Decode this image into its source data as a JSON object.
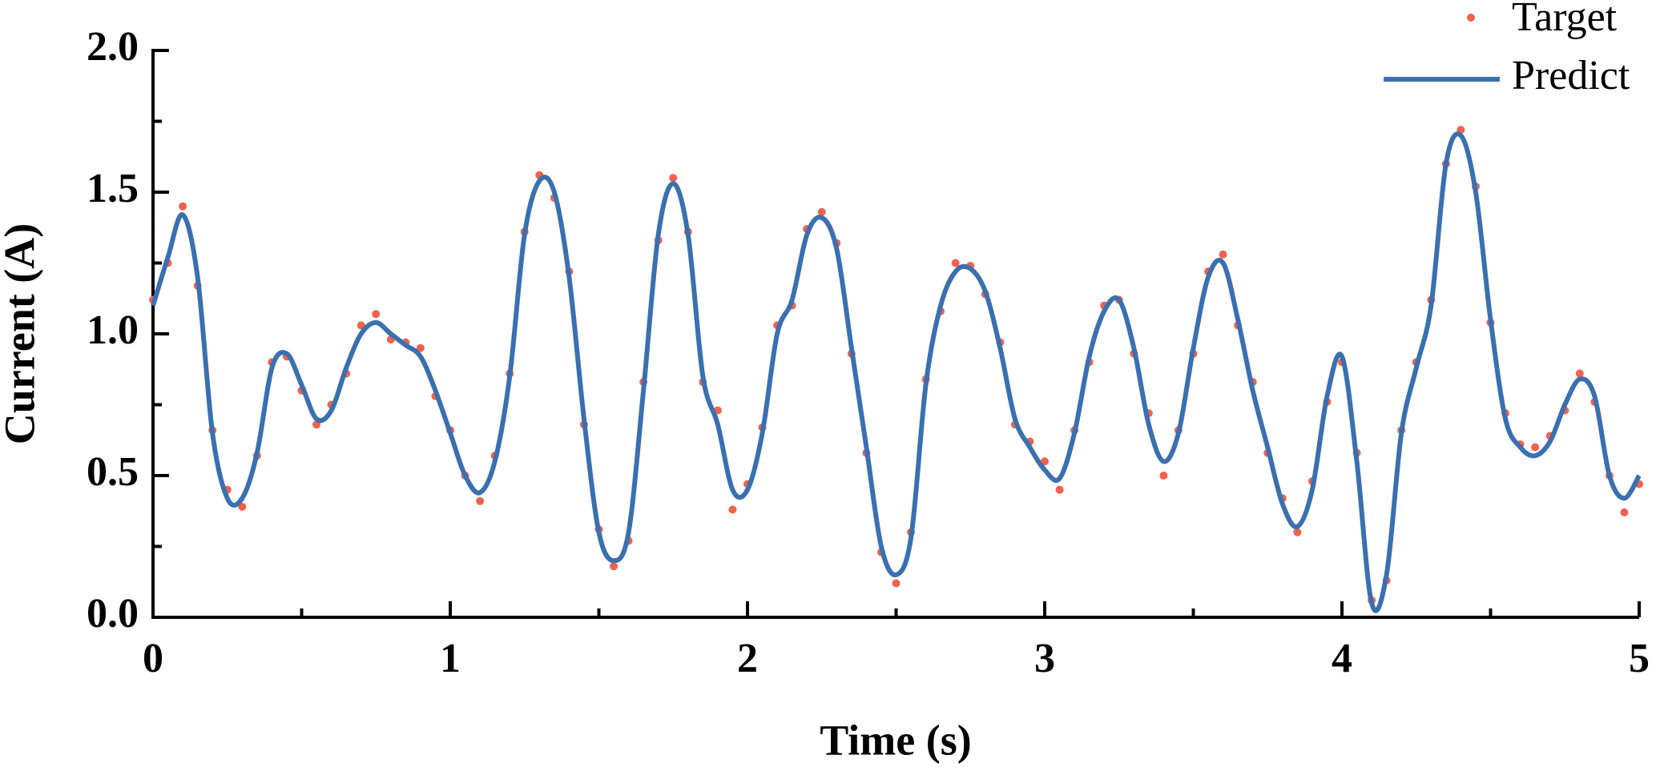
{
  "chart_data": {
    "type": "line",
    "xlabel": "Time (s)",
    "ylabel": "Current (A)",
    "x": [
      0,
      0.05,
      0.1,
      0.15,
      0.2,
      0.25,
      0.3,
      0.35,
      0.4,
      0.45,
      0.5,
      0.55,
      0.6,
      0.65,
      0.7,
      0.75,
      0.8,
      0.85,
      0.9,
      0.95,
      1,
      1.05,
      1.1,
      1.15,
      1.2,
      1.25,
      1.3,
      1.35,
      1.4,
      1.45,
      1.5,
      1.55,
      1.6,
      1.65,
      1.7,
      1.75,
      1.8,
      1.85,
      1.9,
      1.95,
      2,
      2.05,
      2.1,
      2.15,
      2.2,
      2.25,
      2.3,
      2.35,
      2.4,
      2.45,
      2.5,
      2.55,
      2.6,
      2.65,
      2.7,
      2.75,
      2.8,
      2.85,
      2.9,
      2.95,
      3,
      3.05,
      3.1,
      3.15,
      3.2,
      3.25,
      3.3,
      3.35,
      3.4,
      3.45,
      3.5,
      3.55,
      3.6,
      3.65,
      3.7,
      3.75,
      3.8,
      3.85,
      3.9,
      3.95,
      4,
      4.05,
      4.1,
      4.15,
      4.2,
      4.25,
      4.3,
      4.35,
      4.4,
      4.45,
      4.5,
      4.55,
      4.6,
      4.65,
      4.7,
      4.75,
      4.8,
      4.85,
      4.9,
      4.95,
      5
    ],
    "series": [
      {
        "name": "Target",
        "type": "scatter",
        "color": "#f0624d",
        "values": [
          1.12,
          1.25,
          1.45,
          1.17,
          0.66,
          0.45,
          0.39,
          0.57,
          0.9,
          0.92,
          0.8,
          0.68,
          0.75,
          0.86,
          1.03,
          1.07,
          0.98,
          0.97,
          0.95,
          0.78,
          0.66,
          0.5,
          0.41,
          0.57,
          0.86,
          1.36,
          1.56,
          1.48,
          1.22,
          0.68,
          0.31,
          0.18,
          0.27,
          0.83,
          1.33,
          1.55,
          1.36,
          0.83,
          0.73,
          0.38,
          0.47,
          0.67,
          1.03,
          1.1,
          1.37,
          1.43,
          1.32,
          0.93,
          0.58,
          0.23,
          0.12,
          0.3,
          0.84,
          1.08,
          1.25,
          1.24,
          1.14,
          0.97,
          0.68,
          0.62,
          0.55,
          0.45,
          0.66,
          0.9,
          1.1,
          1.12,
          0.93,
          0.72,
          0.5,
          0.66,
          0.93,
          1.22,
          1.28,
          1.03,
          0.83,
          0.58,
          0.42,
          0.3,
          0.48,
          0.76,
          0.9,
          0.58,
          0.06,
          0.13,
          0.66,
          0.9,
          1.12,
          1.6,
          1.72,
          1.52,
          1.04,
          0.72,
          0.61,
          0.6,
          0.64,
          0.73,
          0.86,
          0.76,
          0.5,
          0.37,
          0.47
        ]
      },
      {
        "name": "Predict",
        "type": "line",
        "color": "#3a70b0",
        "values": [
          1.1,
          1.27,
          1.42,
          1.2,
          0.65,
          0.42,
          0.42,
          0.58,
          0.88,
          0.93,
          0.82,
          0.7,
          0.73,
          0.88,
          1.0,
          1.04,
          1.0,
          0.96,
          0.92,
          0.8,
          0.65,
          0.5,
          0.44,
          0.55,
          0.85,
          1.35,
          1.54,
          1.5,
          1.2,
          0.7,
          0.3,
          0.2,
          0.3,
          0.8,
          1.35,
          1.53,
          1.35,
          0.85,
          0.68,
          0.45,
          0.45,
          0.65,
          1.0,
          1.12,
          1.35,
          1.41,
          1.3,
          0.95,
          0.6,
          0.25,
          0.15,
          0.28,
          0.82,
          1.1,
          1.22,
          1.23,
          1.15,
          0.95,
          0.7,
          0.6,
          0.52,
          0.49,
          0.65,
          0.92,
          1.08,
          1.12,
          0.95,
          0.68,
          0.55,
          0.65,
          0.95,
          1.2,
          1.25,
          1.05,
          0.8,
          0.6,
          0.4,
          0.32,
          0.45,
          0.78,
          0.92,
          0.55,
          0.05,
          0.15,
          0.65,
          0.88,
          1.1,
          1.6,
          1.7,
          1.5,
          1.05,
          0.7,
          0.6,
          0.57,
          0.62,
          0.75,
          0.84,
          0.78,
          0.5,
          0.42,
          0.5
        ]
      }
    ],
    "xlim": [
      0,
      5
    ],
    "xticks": [
      0,
      1,
      2,
      3,
      4,
      5
    ],
    "ylim": [
      0,
      2
    ],
    "yticks": [
      {
        "value": 0,
        "label": "0.0"
      },
      0.5,
      {
        "value": 1,
        "label": "1.0"
      },
      1.5,
      {
        "value": 2,
        "label": "2.0"
      }
    ],
    "legend": "upper right",
    "grid": false
  }
}
